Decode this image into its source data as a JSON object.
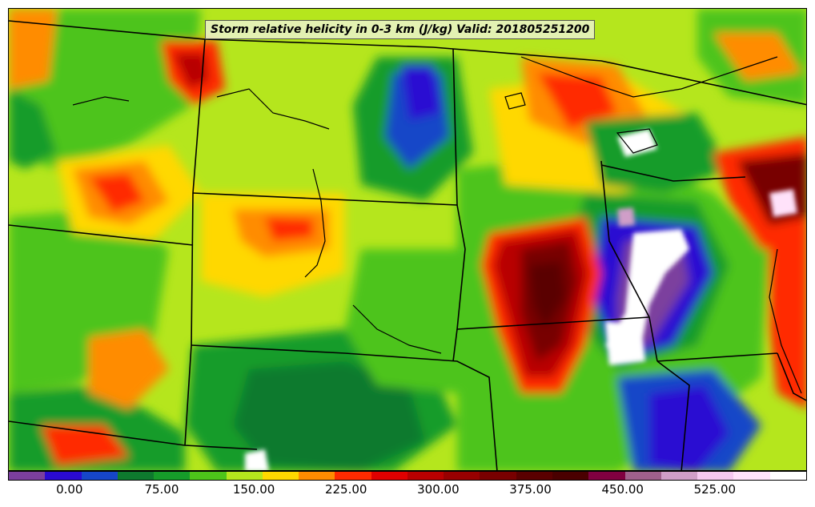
{
  "title": "Storm relative helicity in 0-3 km (J/kg) Valid: 201805251200",
  "legend": {
    "colors": [
      "#7b3f9e",
      "#2a0ad2",
      "#1646c8",
      "#0e7a2e",
      "#169c2a",
      "#4dc41a",
      "#b5e61d",
      "#ffd800",
      "#ff8c00",
      "#ff2a00",
      "#e00000",
      "#b80000",
      "#980000",
      "#780000",
      "#5a0000",
      "#4a0000",
      "#800040",
      "#a0608c",
      "#d09ec8",
      "#f5c8f0",
      "#ffe2fa",
      "#ffffff"
    ],
    "ticks": [
      "0.00",
      "75.00",
      "150.00",
      "225.00",
      "300.00",
      "375.00",
      "450.00",
      "525.00"
    ],
    "tick_values": [
      0,
      75,
      150,
      225,
      300,
      375,
      450,
      525
    ],
    "min": -50,
    "max": 600
  },
  "map_colors": {
    "ocean_of_field": "#b5e61d",
    "state_lines": "#000000",
    "white_blob": "#ffffff"
  }
}
